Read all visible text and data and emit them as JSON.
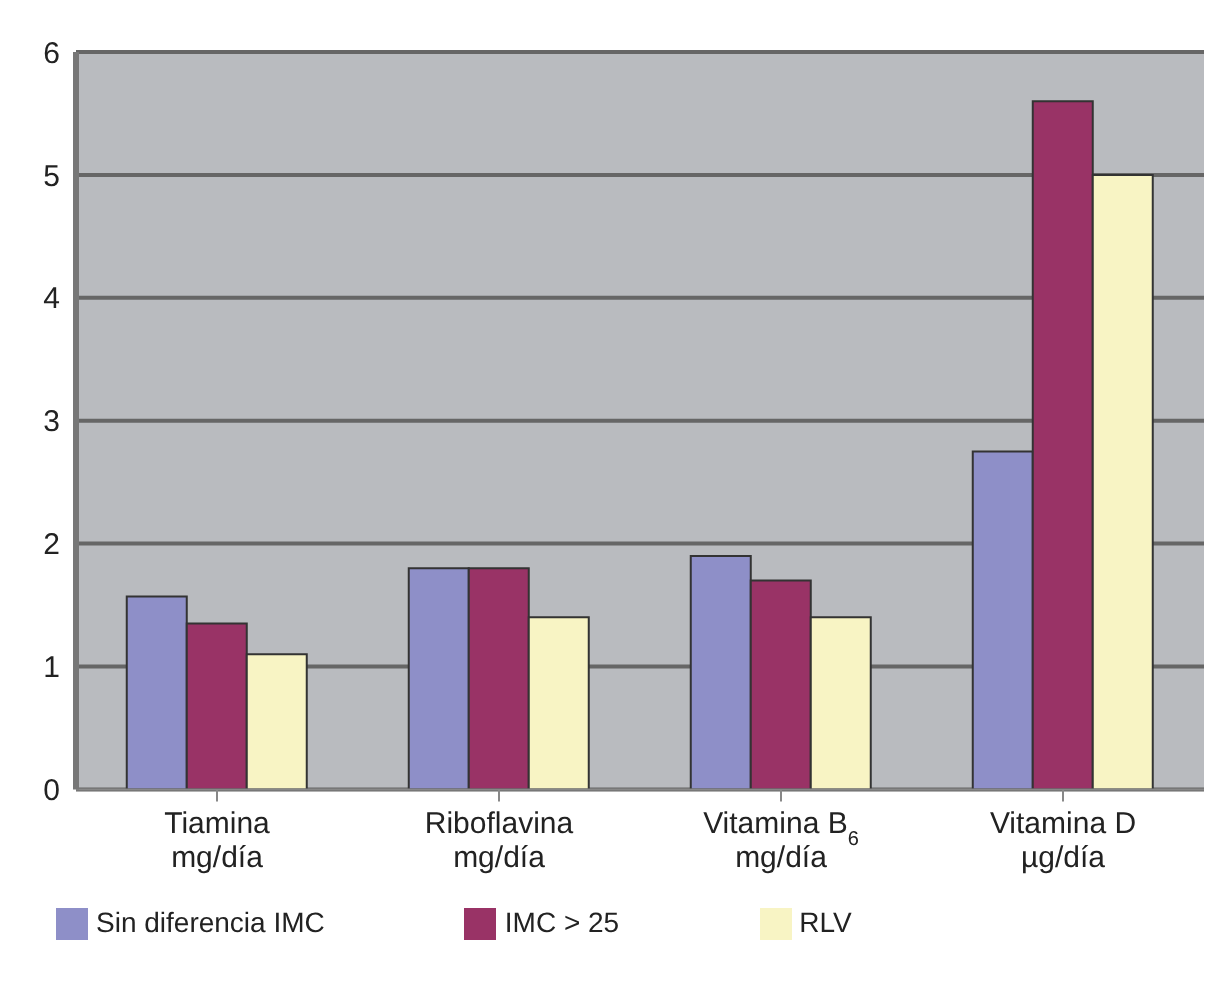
{
  "chart_data": {
    "type": "bar",
    "categories": [
      "Tiamina\nmg/día",
      "Riboflavina\nmg/día",
      "Vitamina B$_{6}$\nmg/día",
      "Vitamina D\nµg/día"
    ],
    "series": [
      {
        "name": "Sin diferencia IMC",
        "color": "#8e8fc8",
        "values": [
          1.57,
          1.8,
          1.9,
          2.75
        ]
      },
      {
        "name": "IMC > 25",
        "color": "#993366",
        "values": [
          1.35,
          1.8,
          1.7,
          5.6
        ]
      },
      {
        "name": "RLV",
        "color": "#f8f4c4",
        "values": [
          1.1,
          1.4,
          1.4,
          5.0
        ]
      }
    ],
    "ylim": [
      0,
      6
    ],
    "yticks": [
      0,
      1,
      2,
      3,
      4,
      5,
      6
    ],
    "grid": "y",
    "legend": "bottom"
  }
}
